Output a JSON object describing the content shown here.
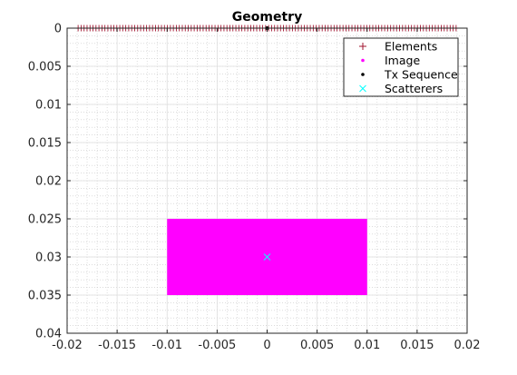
{
  "chart_data": {
    "type": "scatter",
    "title": "Geometry",
    "xlabel": "",
    "ylabel": "",
    "xlim": [
      -0.02,
      0.02
    ],
    "ylim": [
      0,
      0.04
    ],
    "y_reversed": true,
    "grid": "major and minor (dotted)",
    "legend_position": "top-right",
    "x_ticks": [
      -0.02,
      -0.015,
      -0.01,
      -0.005,
      0,
      0.005,
      0.01,
      0.015,
      0.02
    ],
    "x_tick_labels": [
      "-0.02",
      "-0.015",
      "-0.01",
      "-0.005",
      "0",
      "0.005",
      "0.01",
      "0.015",
      "0.02"
    ],
    "y_ticks": [
      0,
      0.005,
      0.01,
      0.015,
      0.02,
      0.025,
      0.03,
      0.035,
      0.04
    ],
    "y_tick_labels": [
      "0",
      "0.005",
      "0.01",
      "0.015",
      "0.02",
      "0.025",
      "0.03",
      "0.035",
      "0.04"
    ],
    "series": [
      {
        "name": "Elements",
        "marker": "+",
        "color": "#a2142f",
        "x_start": -0.0189,
        "x_end": 0.0189,
        "count": 128,
        "y": 0
      },
      {
        "name": "Image",
        "marker": "point",
        "color": "#ff00ff",
        "x_range": [
          -0.01,
          0.01
        ],
        "y_range": [
          0.025,
          0.035
        ]
      },
      {
        "name": "Tx Sequence",
        "marker": "point",
        "color": "#000000",
        "x": [
          0
        ],
        "y": [
          0
        ]
      },
      {
        "name": "Scatterers",
        "marker": "x",
        "color": "#00ffff",
        "x": [
          0
        ],
        "y": [
          0.03
        ]
      }
    ]
  }
}
